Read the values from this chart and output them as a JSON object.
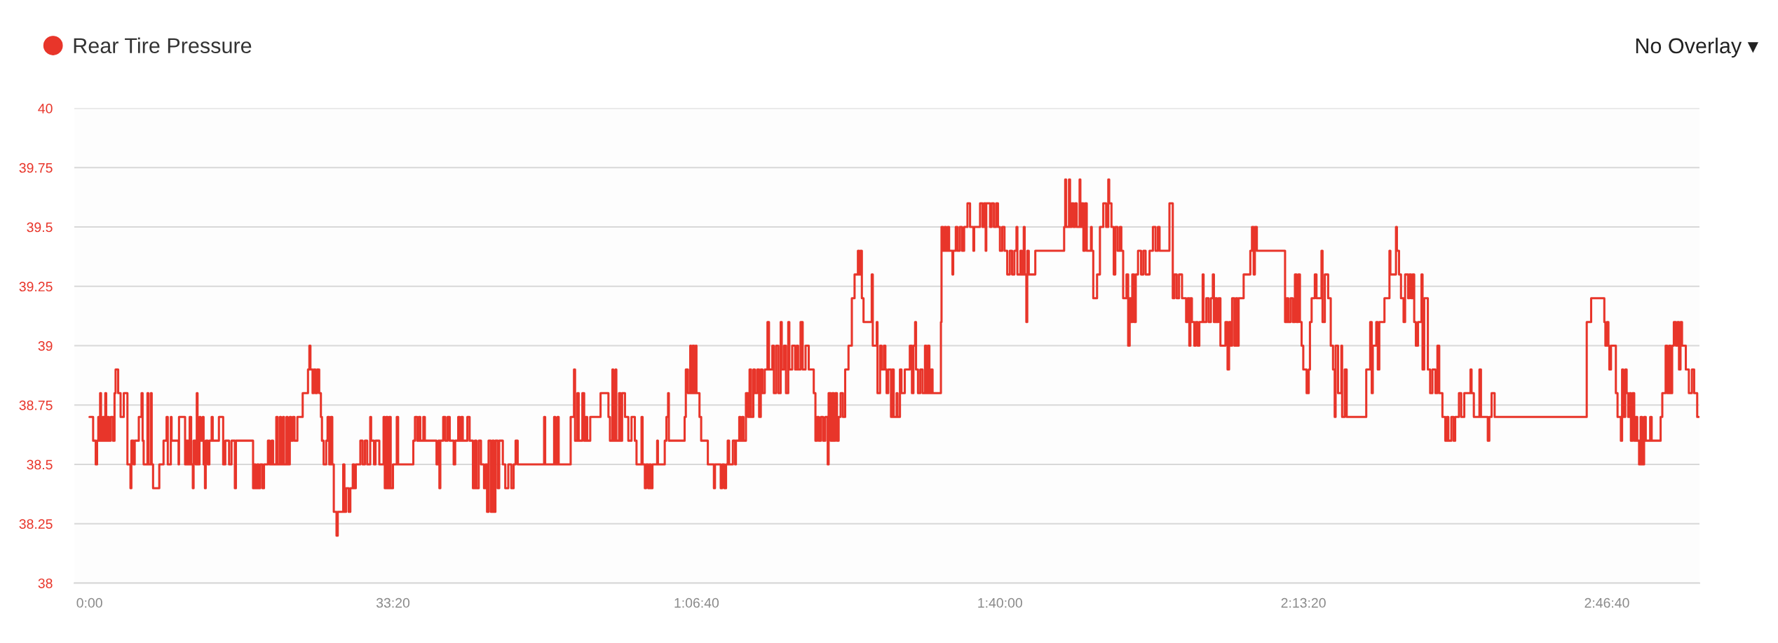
{
  "chart_data": {
    "type": "step",
    "series": [
      {
        "name": "Rear Tire Pressure",
        "color": "#e8352a",
        "x": [
          0,
          24,
          41,
          50,
          58,
          64,
          70,
          76,
          88,
          95,
          104,
          110,
          118,
          128,
          140,
          155,
          165,
          172,
          189,
          205,
          226,
          250,
          270,
          276,
          290,
          298,
          325,
          343,
          350,
          357,
          382,
          388,
          404,
          410,
          419,
          460,
          488,
          508,
          516,
          536,
          541,
          587,
          590,
          630,
          640,
          650,
          660,
          670,
          681,
          686,
          700,
          707,
          712,
          725,
          732,
          746,
          752,
          761,
          766,
          780,
          790,
          805,
          812,
          853,
          881,
          895,
          920,
          936,
          958,
          965,
          1078,
          1085,
          1095,
          1105,
          1115,
          1125,
          1140,
          1150,
          1176,
          1187,
          1200,
          1210,
          1231,
          1240,
          1255,
          1262,
          1275,
          1282,
          1298,
          1306,
          1320,
          1328,
          1340,
          1351,
          1370,
          1405,
          1440,
          1449,
          1456,
          1470,
          1478,
          1490,
          1500,
          1514,
          1525,
          1532,
          1543,
          1560,
          1569,
          1580,
          1590,
          1600,
          1610,
          1628,
          1636,
          1672,
          1680,
          1691,
          1708,
          1719,
          1735,
          1745,
          1755,
          1785,
          1800,
          1815,
          1830,
          1850,
          1856,
          1875,
          1885,
          1910,
          1938,
          1946,
          1955,
          1965,
          1975,
          1985,
          2000,
          2025,
          2034,
          2134,
          2145,
          2160,
          2170,
          2180,
          2200,
          2210,
          2287,
          2300,
          2306,
          2312,
          2331,
          2345,
          2360,
          2374,
          2400,
          2410,
          2430,
          2440,
          2450,
          2460,
          2490,
          2505,
          2527,
          2540,
          2550,
          2565,
          2580,
          2600,
          2610,
          2620,
          2630,
          2645,
          2655,
          2665,
          2675,
          2690,
          2700,
          2724,
          2740,
          2760,
          2780,
          2795,
          2808,
          2822,
          2996,
          3003,
          3062,
          3070,
          3084,
          3092,
          3171,
          3193,
          3200,
          3215,
          3224,
          3248,
          3260,
          3270,
          3280,
          3300,
          3368,
          3420,
          3430,
          3446,
          3452,
          3466,
          3472,
          3490,
          3500,
          3510,
          3529,
          3551,
          3572,
          3594,
          3605,
          3638,
          3645,
          3660,
          3668,
          3682,
          3690,
          3700,
          3710,
          3741,
          3746,
          3791,
          3802,
          3813,
          3818,
          3922,
          3930,
          3944,
          3959,
          3965,
          3975,
          3985,
          3995,
          4000,
          4020,
          4031,
          4075,
          4115,
          4122,
          4160,
          4170,
          4184,
          4195,
          4206,
          4215,
          4240,
          4255,
          4260,
          4282,
          4290,
          4300,
          4310,
          4326,
          4340,
          4350,
          4360,
          4375,
          4385,
          4400,
          4413,
          4424,
          4435,
          4450,
          4468,
          4478,
          4500,
          4510,
          4525,
          4540,
          4555,
          4562,
          4577,
          4590,
          4605,
          4612,
          4631,
          4650,
          4660,
          4670,
          4686,
          4700,
          4719,
          4740,
          4773,
          4784,
          4795,
          4806,
          4820,
          4835,
          4849,
          4865,
          4871,
          4885,
          4895,
          4905,
          4915,
          4926,
          4937,
          4950,
          4965,
          4980,
          5002,
          5024,
          5042,
          5064,
          5072,
          5080,
          5090,
          5101,
          5155,
          5162,
          5188,
          5193,
          5210,
          5220,
          5235,
          5245,
          5253,
          5264,
          5282,
          5290,
          5300,
          5319,
          5325,
          5341,
          5351,
          5373,
          5406,
          5420,
          5430,
          5441,
          5447,
          5460,
          5475,
          5490,
          5506,
          5515,
          5525,
          5535,
          5546,
          5556,
          5611,
          5615,
          5625,
          5635,
          5645,
          5655,
          5665,
          5687,
          5692,
          5709,
          5720,
          5735,
          5750,
          5764,
          5786,
          5803,
          5825,
          5830,
          5869,
          5885,
          5895,
          5906,
          5910,
          5935,
          5945,
          5960,
          5975,
          5987,
          6000,
          6015,
          6030,
          6048,
          6065,
          6080,
          6095,
          6109,
          6115,
          6135,
          6145,
          6157,
          6163,
          6174,
          6180,
          6190,
          6233,
          6423,
          6430,
          6436,
          6455,
          6462,
          6473,
          6485,
          6495,
          6506,
          6525,
          6530,
          6539,
          6550,
          6560,
          6572,
          6600,
          6605,
          6615,
          6640,
          6659,
          6681,
          6700,
          6714,
          6720,
          6735,
          6750,
          6760,
          6775,
          6790,
          6800,
          6812,
          6834,
          6845,
          6855,
          6866,
          6872,
          6885,
          6895,
          6910,
          6930,
          6945,
          6960,
          6986,
          7008,
          7025,
          7041,
          7052,
          7117,
          7139,
          7150,
          7165,
          7180,
          7200,
          7227,
          7237,
          7248,
          7255,
          7265,
          7281,
          7290,
          7303,
          7314,
          7336,
          7342,
          7360,
          7375,
          7390,
          7403,
          7410,
          7420,
          7430,
          7440,
          7453,
          7486,
          7500,
          7510,
          7520,
          7530,
          7545,
          7555,
          7565,
          7573,
          7606,
          7650,
          7661,
          7672,
          7680,
          7693,
          7879,
          7890,
          7900,
          7915,
          7930,
          7944,
          7955,
          7966,
          7977,
          7988,
          7999,
          8021,
          8035,
          8043,
          8054,
          8075,
          8086,
          8119,
          8126,
          8141,
          8163,
          8180,
          8195,
          8206,
          8212,
          8228,
          8250,
          8255,
          8272,
          8285,
          8414,
          8440,
          8450,
          8457,
          8480,
          8490,
          8500,
          8534,
          8567,
          8573,
          8610,
          8616,
          8630,
          8643,
          8660,
          8670,
          8690,
          8698,
          8710,
          8719,
          8730,
          8741,
          8755,
          8778,
          8785,
          8796,
          8820,
          8835,
          8850,
          8870,
          8883,
          8895,
          8916,
          8935,
          8945,
          8955,
          8975,
          8990,
          9000,
          9025,
          9040,
          9060,
          9101,
          9108,
          9123,
          9160,
          9170,
          9215,
          9225,
          9240,
          9260,
          9867,
          9896,
          9983,
          9990,
          10000,
          10010,
          10016,
          10027,
          10059,
          10070,
          10092,
          10100,
          10108,
          10121,
          10130,
          10140,
          10150,
          10158,
          10169,
          10180,
          10190,
          10200,
          10212,
          10222,
          10232,
          10245,
          10256,
          10285,
          10295,
          10354,
          10365,
          10387,
          10398,
          10410,
          10420,
          10430,
          10441,
          10455,
          10465,
          10475,
          10485,
          10495,
          10520,
          10540,
          10560,
          10575,
          10595,
          10605
        ],
        "values": [
          38.7,
          38.6,
          38.5,
          38.6,
          38.7,
          38.6,
          38.8,
          38.6,
          38.7,
          38.6,
          38.8,
          38.6,
          38.7,
          38.6,
          38.7,
          38.6,
          38.8,
          38.9,
          38.8,
          38.7,
          38.8,
          38.5,
          38.4,
          38.6,
          38.5,
          38.6,
          38.7,
          38.8,
          38.6,
          38.5,
          38.8,
          38.5,
          38.8,
          38.5,
          38.4,
          38.5,
          38.6,
          38.7,
          38.5,
          38.7,
          38.6,
          38.5,
          38.7,
          38.5,
          38.6,
          38.5,
          38.7,
          38.5,
          38.4,
          38.6,
          38.5,
          38.8,
          38.5,
          38.7,
          38.6,
          38.7,
          38.5,
          38.4,
          38.6,
          38.5,
          38.6,
          38.7,
          38.6,
          38.7,
          38.5,
          38.6,
          38.5,
          38.6,
          38.4,
          38.6,
          38.4,
          38.5,
          38.4,
          38.5,
          38.4,
          38.5,
          38.4,
          38.5,
          38.6,
          38.5,
          38.6,
          38.5,
          38.7,
          38.5,
          38.7,
          38.5,
          38.7,
          38.5,
          38.7,
          38.5,
          38.7,
          38.6,
          38.7,
          38.6,
          38.7,
          38.8,
          38.9,
          39.0,
          38.9,
          38.8,
          38.9,
          38.8,
          38.9,
          38.8,
          38.7,
          38.6,
          38.5,
          38.6,
          38.7,
          38.5,
          38.7,
          38.5,
          38.3,
          38.2,
          38.3,
          38.5,
          38.3,
          38.4,
          38.3,
          38.4,
          38.5,
          38.4,
          38.5,
          38.6,
          38.5,
          38.6,
          38.5,
          38.7,
          38.6,
          38.5,
          38.6,
          38.5,
          38.7,
          38.4,
          38.7,
          38.4,
          38.7,
          38.4,
          38.5,
          38.7,
          38.5,
          38.6,
          38.7,
          38.6,
          38.7,
          38.6,
          38.7,
          38.6,
          38.5,
          38.6,
          38.4,
          38.6,
          38.7,
          38.6,
          38.7,
          38.6,
          38.5,
          38.6,
          38.7,
          38.6,
          38.7,
          38.6,
          38.7,
          38.6,
          38.4,
          38.6,
          38.4,
          38.6,
          38.5,
          38.4,
          38.5,
          38.3,
          38.6,
          38.3,
          38.6,
          38.3,
          38.6,
          38.4,
          38.6,
          38.5,
          38.4,
          38.5,
          38.4,
          38.5,
          38.6,
          38.5,
          38.7,
          38.5,
          38.7,
          38.5,
          38.7,
          38.5,
          38.7,
          38.9,
          38.6,
          38.8,
          38.6,
          38.8,
          38.6,
          38.7,
          38.6,
          38.7,
          38.8,
          38.7,
          38.6,
          38.9,
          38.6,
          38.9,
          38.6,
          38.8,
          38.6,
          38.8,
          38.7,
          38.6,
          38.7,
          38.6,
          38.5,
          38.7,
          38.5,
          38.4,
          38.5,
          38.4,
          38.5,
          38.4,
          38.5,
          38.6,
          38.5,
          38.6,
          38.7,
          38.8,
          38.6,
          38.7,
          38.9,
          38.8,
          39.0,
          38.8,
          39.0,
          38.8,
          39.0,
          38.8,
          38.7,
          38.6,
          38.5,
          38.4,
          38.5,
          38.4,
          38.5,
          38.4,
          38.5,
          38.6,
          38.5,
          38.6,
          38.5,
          38.6,
          38.7,
          38.6,
          38.7,
          38.6,
          38.8,
          38.7,
          38.9,
          38.7,
          38.9,
          38.8,
          38.9,
          38.7,
          38.9,
          38.8,
          38.9,
          39.1,
          38.9,
          39.0,
          38.8,
          39.0,
          38.8,
          39.1,
          38.9,
          39.0,
          38.8,
          39.1,
          38.9,
          39.0,
          38.9,
          39.0,
          38.9,
          39.1,
          38.9,
          39.0,
          38.9,
          38.8,
          38.6,
          38.7,
          38.6,
          38.7,
          38.6,
          38.7,
          38.5,
          38.8,
          38.6,
          38.8,
          38.6,
          38.8,
          38.6,
          38.7,
          38.8,
          38.7,
          38.9,
          39.0,
          39.2,
          39.3,
          39.4,
          39.3,
          39.4,
          39.2,
          39.1,
          39.3,
          39.0,
          39.1,
          38.8,
          39.0,
          38.9,
          39.0,
          38.9,
          38.8,
          38.9,
          38.7,
          38.9,
          38.7,
          38.8,
          38.7,
          38.9,
          38.8,
          38.9,
          39.0,
          38.8,
          39.0,
          39.1,
          38.9,
          38.8,
          38.9,
          38.8,
          39.0,
          38.8,
          39.0,
          38.8,
          38.9,
          38.8,
          39.1,
          39.5,
          39.4,
          39.5,
          39.4,
          39.5,
          39.4,
          39.3,
          39.4,
          39.5,
          39.4,
          39.5,
          39.4,
          39.5,
          39.6,
          39.5,
          39.4,
          39.5,
          39.6,
          39.5,
          39.6,
          39.4,
          39.6,
          39.5,
          39.6,
          39.5,
          39.6,
          39.5,
          39.4,
          39.5,
          39.4,
          39.3,
          39.4,
          39.3,
          39.4,
          39.5,
          39.3,
          39.4,
          39.3,
          39.5,
          39.3,
          39.1,
          39.4,
          39.3,
          39.4,
          39.5,
          39.7,
          39.5,
          39.7,
          39.5,
          39.6,
          39.5,
          39.6,
          39.5,
          39.7,
          39.5,
          39.6,
          39.4,
          39.6,
          39.4,
          39.5,
          39.4,
          39.2,
          39.3,
          39.5,
          39.6,
          39.5,
          39.7,
          39.6,
          39.5,
          39.3,
          39.5,
          39.4,
          39.5,
          39.4,
          39.2,
          39.3,
          39.0,
          39.2,
          39.1,
          39.3,
          39.1,
          39.3,
          39.4,
          39.3,
          39.4,
          39.3,
          39.4,
          39.5,
          39.4,
          39.5,
          39.4,
          39.6,
          39.2,
          39.3,
          39.2,
          39.3,
          39.2,
          39.1,
          39.2,
          39.0,
          39.2,
          39.1,
          39.0,
          39.1,
          39.0,
          39.1,
          39.3,
          39.1,
          39.2,
          39.1,
          39.2,
          39.3,
          39.1,
          39.2,
          39.1,
          39.2,
          39.0,
          39.1,
          38.9,
          39.1,
          39.0,
          39.2,
          39.0,
          39.2,
          39.0,
          39.2,
          39.3,
          39.4,
          39.5,
          39.3,
          39.5,
          39.4,
          39.1,
          39.2,
          39.1,
          39.2,
          39.1,
          39.3,
          39.1,
          39.3,
          39.1,
          39.0,
          38.9,
          38.8,
          38.9,
          39.1,
          39.2,
          39.3,
          39.2,
          39.4,
          39.1,
          39.3,
          39.2,
          39.0,
          38.9,
          38.7,
          39.0,
          38.8,
          39.0,
          38.7,
          38.9,
          38.7,
          38.9,
          39.1,
          38.8,
          39.0,
          39.1,
          38.9,
          39.1,
          39.2,
          39.4,
          39.3,
          39.5,
          39.4,
          39.3,
          39.2,
          39.1,
          39.3,
          39.2,
          39.3,
          39.2,
          39.3,
          39.1,
          39.0,
          39.1,
          39.3,
          38.9,
          39.2,
          38.9,
          38.8,
          38.9,
          38.8,
          39.0,
          38.8,
          38.7,
          38.6,
          38.7,
          38.6,
          38.7,
          38.6,
          38.7,
          38.8,
          38.7,
          38.8,
          38.9,
          38.8,
          38.7,
          38.9,
          38.7,
          38.6,
          38.7,
          38.8,
          38.7,
          39.1,
          39.2,
          39.1,
          39.0,
          39.1,
          39.0,
          38.9,
          39.0,
          38.8,
          38.7,
          38.6,
          38.9,
          38.7,
          38.9,
          38.8,
          38.7,
          38.8,
          38.6,
          38.8,
          38.6,
          38.7,
          38.6,
          38.5,
          38.7,
          38.5,
          38.7,
          38.6,
          38.7,
          38.6,
          38.7,
          38.8,
          39.0,
          38.8,
          39.0,
          38.8,
          39.0,
          39.1,
          39.0,
          39.1,
          38.9,
          39.1,
          39.0,
          38.9,
          38.8,
          38.9,
          38.8,
          38.7,
          38.7
        ]
      }
    ],
    "xlim": [
      -100,
      10610
    ],
    "xticks": [
      {
        "value": 0,
        "label": "0:00"
      },
      {
        "value": 2000,
        "label": "33:20"
      },
      {
        "value": 4000,
        "label": "1:06:40"
      },
      {
        "value": 6000,
        "label": "1:40:00"
      },
      {
        "value": 8000,
        "label": "2:13:20"
      },
      {
        "value": 10000,
        "label": "2:46:40"
      }
    ],
    "ylim": [
      38,
      40
    ],
    "yticks": [
      38,
      38.25,
      38.5,
      38.75,
      39,
      39.25,
      39.5,
      39.75,
      40
    ],
    "grid": "y",
    "legend": "top left",
    "annotations": [
      "No Overlay ▾"
    ]
  }
}
